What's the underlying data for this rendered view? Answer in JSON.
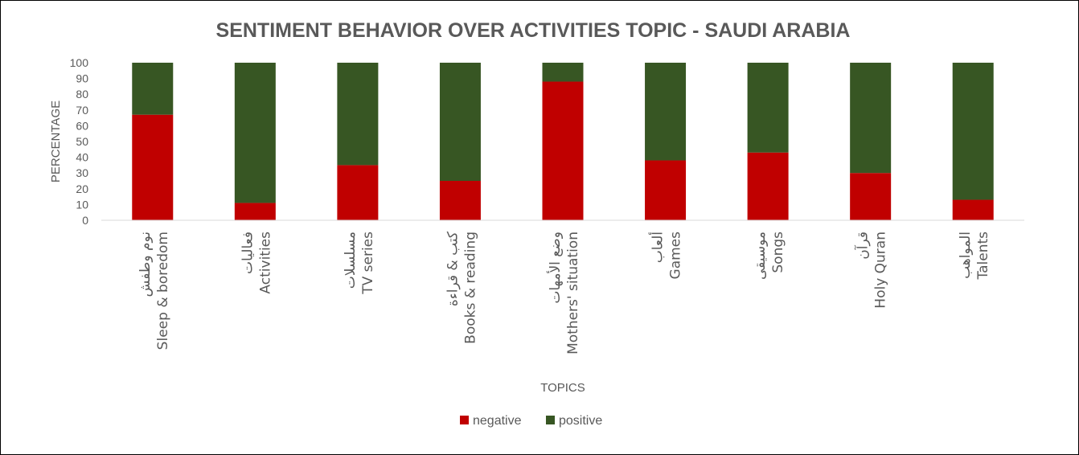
{
  "chart_data": {
    "type": "bar",
    "stacked": true,
    "title": "SENTIMENT BEHAVIOR OVER ACTIVITIES TOPIC - SAUDI ARABIA",
    "xlabel": "TOPICS",
    "ylabel": "PERCENTAGE",
    "ylim": [
      0,
      100
    ],
    "yticks": [
      0,
      10,
      20,
      30,
      40,
      50,
      60,
      70,
      80,
      90,
      100
    ],
    "grid": false,
    "legend_position": "bottom",
    "categories": [
      {
        "arabic": "نوم وطفش",
        "english": "Sleep & boredom"
      },
      {
        "arabic": "فعاليات",
        "english": "Activities"
      },
      {
        "arabic": "مسلسلات",
        "english": "TV series"
      },
      {
        "arabic": "كتب & قراءة",
        "english": "Books & reading"
      },
      {
        "arabic": "وضع الأمهات",
        "english": "Mothers' situation"
      },
      {
        "arabic": "ألعاب",
        "english": "Games"
      },
      {
        "arabic": "موسيقى",
        "english": "Songs"
      },
      {
        "arabic": "قرآن",
        "english": "Holy Quran"
      },
      {
        "arabic": "المواهب",
        "english": "Talents"
      }
    ],
    "series": [
      {
        "name": "negative",
        "color": "#c00000",
        "values": [
          67,
          11,
          35,
          25,
          88,
          38,
          43,
          30,
          13
        ]
      },
      {
        "name": "positive",
        "color": "#375623",
        "values": [
          33,
          89,
          65,
          75,
          12,
          62,
          57,
          70,
          87
        ]
      }
    ]
  }
}
